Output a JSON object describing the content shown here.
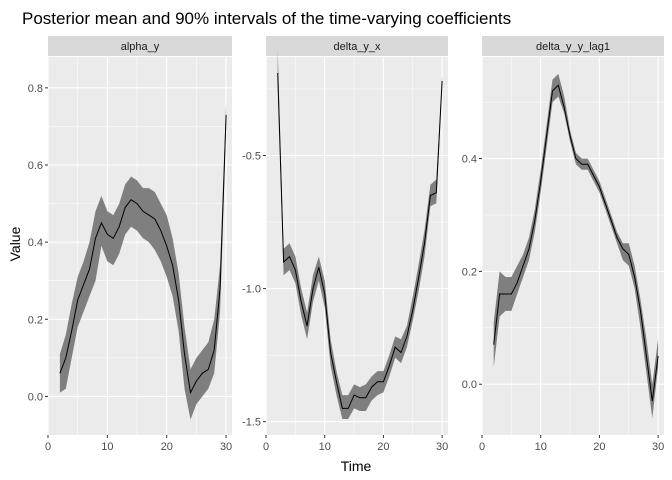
{
  "chart_data": {
    "type": "line",
    "title": "Posterior mean and 90% intervals of the time-varying coefficients",
    "xlabel": "Time",
    "ylabel": "Value",
    "colors": {
      "panel_bg": "#ebebeb",
      "strip_bg": "#d9d9d9",
      "grid": "#ffffff",
      "ribbon": "#7f7f7f",
      "line": "#000000"
    },
    "panels": [
      {
        "name": "alpha_y",
        "xlim": [
          0,
          31
        ],
        "ylim": [
          -0.1,
          0.88
        ],
        "xticks": [
          0,
          10,
          20,
          30
        ],
        "yticks": [
          0.0,
          0.2,
          0.4,
          0.6,
          0.8
        ],
        "ytick_labels": [
          "0.0",
          "0.2",
          "0.4",
          "0.6",
          "0.8"
        ],
        "x": [
          2,
          3,
          4,
          5,
          6,
          7,
          8,
          9,
          10,
          11,
          12,
          13,
          14,
          15,
          16,
          17,
          18,
          19,
          20,
          21,
          22,
          23,
          24,
          25,
          26,
          27,
          28,
          29,
          30
        ],
        "mean": [
          0.06,
          0.1,
          0.17,
          0.25,
          0.29,
          0.33,
          0.41,
          0.45,
          0.42,
          0.41,
          0.44,
          0.49,
          0.51,
          0.5,
          0.48,
          0.47,
          0.46,
          0.43,
          0.39,
          0.34,
          0.25,
          0.11,
          0.01,
          0.04,
          0.06,
          0.07,
          0.12,
          0.28,
          0.73
        ],
        "lower": [
          0.01,
          0.02,
          0.1,
          0.18,
          0.22,
          0.26,
          0.3,
          0.39,
          0.35,
          0.34,
          0.37,
          0.42,
          0.44,
          0.43,
          0.41,
          0.4,
          0.38,
          0.35,
          0.31,
          0.26,
          0.17,
          0.02,
          -0.06,
          -0.02,
          0.0,
          0.02,
          0.06,
          0.22,
          0.7
        ],
        "upper": [
          0.11,
          0.16,
          0.24,
          0.31,
          0.35,
          0.4,
          0.48,
          0.52,
          0.48,
          0.47,
          0.5,
          0.55,
          0.57,
          0.56,
          0.54,
          0.54,
          0.53,
          0.5,
          0.47,
          0.41,
          0.32,
          0.18,
          0.07,
          0.1,
          0.12,
          0.14,
          0.2,
          0.34,
          0.76
        ]
      },
      {
        "name": "delta_y_x",
        "xlim": [
          0,
          31
        ],
        "ylim": [
          -1.55,
          -0.13
        ],
        "xticks": [
          0,
          10,
          20,
          30
        ],
        "yticks": [
          -1.5,
          -1.0,
          -0.5
        ],
        "ytick_labels": [
          "-1.5",
          "-1.0",
          "-0.5"
        ],
        "x": [
          2,
          3,
          4,
          5,
          6,
          7,
          8,
          9,
          10,
          11,
          12,
          13,
          14,
          15,
          16,
          17,
          18,
          19,
          20,
          21,
          22,
          23,
          24,
          25,
          26,
          27,
          28,
          29,
          30
        ],
        "mean": [
          -0.19,
          -0.9,
          -0.88,
          -0.93,
          -1.05,
          -1.14,
          -1.0,
          -0.92,
          -1.02,
          -1.24,
          -1.35,
          -1.45,
          -1.45,
          -1.4,
          -1.41,
          -1.41,
          -1.37,
          -1.35,
          -1.35,
          -1.29,
          -1.22,
          -1.24,
          -1.18,
          -1.08,
          -0.96,
          -0.83,
          -0.65,
          -0.64,
          -0.22
        ],
        "lower": [
          -0.22,
          -0.95,
          -0.93,
          -0.98,
          -1.1,
          -1.19,
          -1.05,
          -0.97,
          -1.07,
          -1.29,
          -1.4,
          -1.49,
          -1.49,
          -1.45,
          -1.46,
          -1.46,
          -1.42,
          -1.4,
          -1.39,
          -1.33,
          -1.26,
          -1.28,
          -1.22,
          -1.12,
          -1.01,
          -0.88,
          -0.69,
          -0.68,
          -0.24
        ],
        "upper": [
          -0.1,
          -0.85,
          -0.83,
          -0.88,
          -1.0,
          -1.09,
          -0.95,
          -0.88,
          -0.97,
          -1.19,
          -1.31,
          -1.4,
          -1.4,
          -1.36,
          -1.37,
          -1.36,
          -1.33,
          -1.31,
          -1.31,
          -1.25,
          -1.18,
          -1.19,
          -1.14,
          -1.03,
          -0.91,
          -0.78,
          -0.61,
          -0.59,
          -0.2
        ]
      },
      {
        "name": "delta_y_y_lag1",
        "xlim": [
          0,
          31
        ],
        "ylim": [
          -0.09,
          0.58
        ],
        "xticks": [
          0,
          10,
          20,
          30
        ],
        "yticks": [
          0.0,
          0.2,
          0.4
        ],
        "ytick_labels": [
          "0.0",
          "0.2",
          "0.4"
        ],
        "x": [
          2,
          3,
          4,
          5,
          6,
          7,
          8,
          9,
          10,
          11,
          12,
          13,
          14,
          15,
          16,
          17,
          18,
          19,
          20,
          21,
          22,
          23,
          24,
          25,
          26,
          27,
          28,
          29,
          30
        ],
        "mean": [
          0.07,
          0.16,
          0.16,
          0.16,
          0.18,
          0.21,
          0.24,
          0.29,
          0.36,
          0.44,
          0.52,
          0.53,
          0.49,
          0.44,
          0.4,
          0.39,
          0.39,
          0.37,
          0.35,
          0.32,
          0.29,
          0.26,
          0.24,
          0.23,
          0.19,
          0.13,
          0.05,
          -0.03,
          0.05
        ],
        "lower": [
          0.03,
          0.12,
          0.13,
          0.13,
          0.16,
          0.19,
          0.22,
          0.27,
          0.34,
          0.42,
          0.5,
          0.51,
          0.48,
          0.43,
          0.39,
          0.38,
          0.38,
          0.36,
          0.34,
          0.31,
          0.28,
          0.25,
          0.22,
          0.21,
          0.17,
          0.1,
          0.02,
          -0.06,
          0.03
        ],
        "upper": [
          0.11,
          0.2,
          0.19,
          0.19,
          0.21,
          0.23,
          0.26,
          0.31,
          0.38,
          0.46,
          0.54,
          0.55,
          0.51,
          0.45,
          0.41,
          0.4,
          0.4,
          0.38,
          0.36,
          0.33,
          0.3,
          0.27,
          0.25,
          0.25,
          0.21,
          0.15,
          0.08,
          0.0,
          0.08
        ]
      }
    ]
  }
}
